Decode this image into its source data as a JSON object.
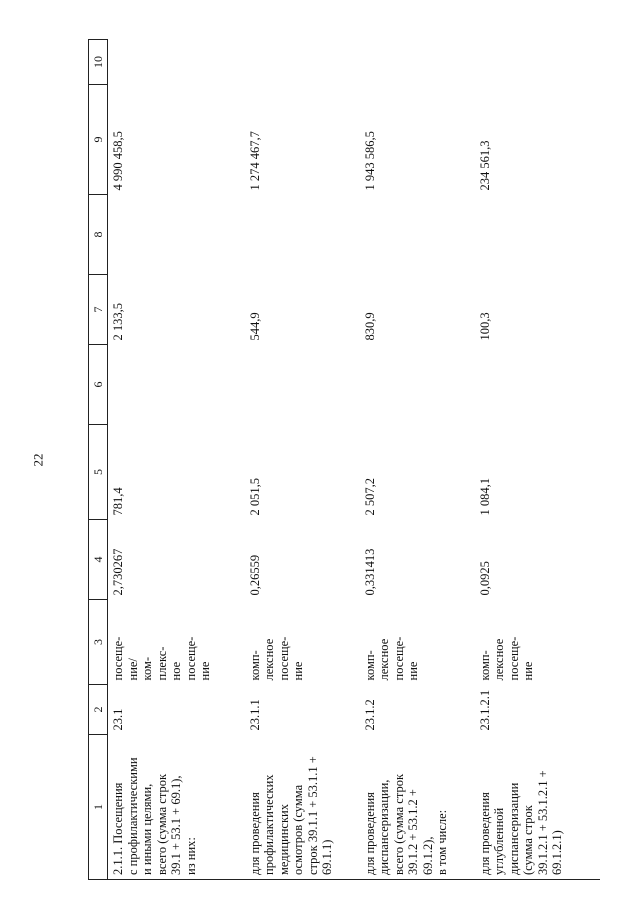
{
  "page_number": "22",
  "table": {
    "header": [
      "1",
      "2",
      "3",
      "4",
      "5",
      "6",
      "7",
      "8",
      "9",
      "10"
    ],
    "rows": [
      [
        "2.1.1. Посещения\nс профилактическими\nи иными целями,\nвсего (сумма строк\n39.1 + 53.1 + 69.1),\nиз них:",
        "23.1",
        "посеще-\nние/\nком-\nплекс-\nное\nпосеще-\nние",
        "2,730267",
        "781,4",
        null,
        "2 133,5",
        null,
        "4 990 458,5",
        null
      ],
      [
        "для проведения\nпрофилактических\nмедицинских\nосмотров (сумма\nстрок 39.1.1 + 53.1.1 +\n69.1.1)",
        "23.1.1",
        "комп-\nлексное\nпосеще-\nние",
        "0,26559",
        "2 051,5",
        null,
        "544,9",
        null,
        "1 274 467,7",
        null
      ],
      [
        "для проведения\nдиспансеризации,\nвсего (сумма строк\n39.1.2 + 53.1.2 +\n69.1.2),\nв том числе:",
        "23.1.2",
        "комп-\nлексное\nпосеще-\nние",
        "0,331413",
        "2 507,2",
        null,
        "830,9",
        null,
        "1 943 586,5",
        null
      ],
      [
        "для проведения\nуглубленной\nдиспансеризации\n(сумма строк\n39.1.2.1 + 53.1.2.1 +\n69.1.2.1)",
        "23.1.2.1",
        "комп-\nлексное\nпосеще-\nние",
        "0,0925",
        "1 084,1",
        null,
        "100,3",
        null,
        "234 561,3",
        null
      ]
    ]
  }
}
